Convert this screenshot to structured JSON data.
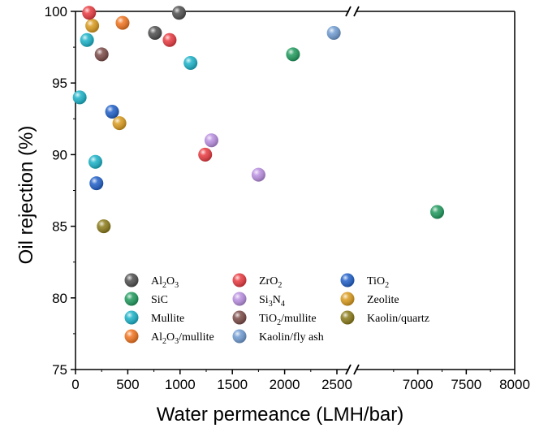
{
  "chart_data": {
    "type": "scatter",
    "xlabel": "Water permeance (LMH/bar)",
    "ylabel": "Oil rejection (%)",
    "ylim": [
      75,
      100
    ],
    "y_ticks": [
      "75",
      "80",
      "85",
      "90",
      "95",
      "100"
    ],
    "x_axis": {
      "broken": true,
      "segments": [
        {
          "range": [
            0,
            2500
          ],
          "ticks": [
            "0",
            "500",
            "1000",
            "1500",
            "2000",
            "2500"
          ]
        },
        {
          "range": [
            6500,
            8000
          ],
          "ticks": [
            "7000",
            "7500",
            "8000"
          ]
        }
      ]
    },
    "legend_placement": "bottom-center",
    "legend_columns": 3,
    "series": [
      {
        "name": "Al2O3",
        "label": {
          "base": "Al",
          "sub1": "2",
          "mid": "O",
          "sub2": "3",
          "tail": ""
        },
        "color": "#4d4d4d",
        "points": [
          {
            "x": 760,
            "y": 98.5
          },
          {
            "x": 990,
            "y": 99.9
          }
        ]
      },
      {
        "name": "ZrO2",
        "label": {
          "base": "ZrO",
          "sub1": "2",
          "mid": "",
          "sub2": "",
          "tail": ""
        },
        "color": "#e8393f",
        "points": [
          {
            "x": 900,
            "y": 98
          },
          {
            "x": 1240,
            "y": 90
          }
        ]
      },
      {
        "name": "TiO2",
        "label": {
          "base": "TiO",
          "sub1": "2",
          "mid": "",
          "sub2": "",
          "tail": ""
        },
        "color": "#1f5fc8",
        "points": [
          {
            "x": 350,
            "y": 93
          },
          {
            "x": 200,
            "y": 88
          }
        ]
      },
      {
        "name": "SiC",
        "label": {
          "base": "SiC",
          "sub1": "",
          "mid": "",
          "sub2": "",
          "tail": ""
        },
        "color": "#1e9a5c",
        "points": [
          {
            "x": 2080,
            "y": 97
          },
          {
            "x": 7200,
            "y": 86
          }
        ]
      },
      {
        "name": "Si3N4",
        "label": {
          "base": "Si",
          "sub1": "3",
          "mid": "N",
          "sub2": "4",
          "tail": ""
        },
        "color": "#b98ee0",
        "points": [
          {
            "x": 1300,
            "y": 91
          },
          {
            "x": 1750,
            "y": 88.6
          }
        ]
      },
      {
        "name": "Zeolite",
        "label": {
          "base": "Zeolite",
          "sub1": "",
          "mid": "",
          "sub2": "",
          "tail": ""
        },
        "color": "#d99a1c",
        "points": [
          {
            "x": 160,
            "y": 99
          },
          {
            "x": 420,
            "y": 92.2
          }
        ]
      },
      {
        "name": "Mullite",
        "label": {
          "base": "Mullite",
          "sub1": "",
          "mid": "",
          "sub2": "",
          "tail": ""
        },
        "color": "#19b2c8",
        "points": [
          {
            "x": 110,
            "y": 98
          },
          {
            "x": 40,
            "y": 94
          },
          {
            "x": 190,
            "y": 89.5
          },
          {
            "x": 1100,
            "y": 96.4
          }
        ]
      },
      {
        "name": "TiO2/mullite",
        "label": {
          "base": "TiO",
          "sub1": "2",
          "mid": "",
          "sub2": "",
          "tail": "/mullite"
        },
        "color": "#7b4a46",
        "points": [
          {
            "x": 250,
            "y": 97
          }
        ]
      },
      {
        "name": "Kaolin/quartz",
        "label": {
          "base": "Kaolin/quartz",
          "sub1": "",
          "mid": "",
          "sub2": "",
          "tail": ""
        },
        "color": "#8a7a18",
        "points": [
          {
            "x": 270,
            "y": 85
          }
        ]
      },
      {
        "name": "Al2O3/mullite",
        "label": {
          "base": "Al",
          "sub1": "2",
          "mid": "O",
          "sub2": "3",
          "tail": "/mullite"
        },
        "color": "#f0731e",
        "points": [
          {
            "x": 450,
            "y": 99.2
          }
        ]
      },
      {
        "name": "Kaolin/fly ash",
        "label": {
          "base": "Kaolin/fly ash",
          "sub1": "",
          "mid": "",
          "sub2": "",
          "tail": ""
        },
        "color": "#6f9bd1",
        "points": [
          {
            "x": 2470,
            "y": 98.5
          }
        ]
      },
      {
        "name": "ZrO2-extra",
        "label": null,
        "color": "#e8393f",
        "points": [
          {
            "x": 130,
            "y": 99.9
          }
        ]
      }
    ]
  }
}
